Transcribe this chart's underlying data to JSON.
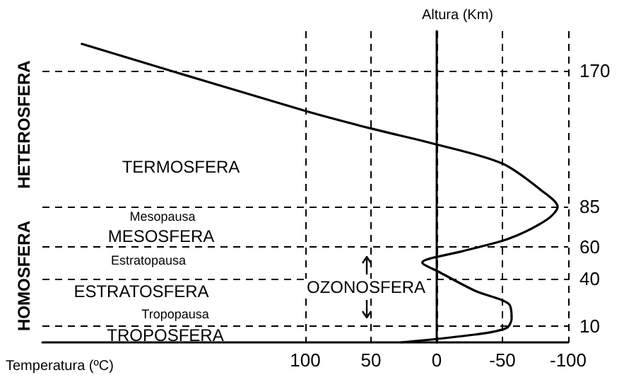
{
  "chart_data": {
    "type": "line",
    "xlabel": "Temperatura (ºC)",
    "ylabel": "Altura (Km)",
    "x": [
      27,
      -30,
      -53,
      -57,
      -55,
      -30,
      -2,
      11,
      -19,
      -55,
      -84,
      -92,
      -80,
      -50,
      0,
      50,
      100,
      270
    ],
    "series": [
      {
        "color": "#000000",
        "values": [
          0,
          5,
          9,
          15,
          24,
          32,
          44,
          50,
          57,
          65,
          77,
          85,
          95,
          112,
          124,
          134,
          145,
          187
        ]
      }
    ],
    "xlim": [
      300,
      -100
    ],
    "xticks": [
      100,
      50,
      0,
      -50,
      -100
    ],
    "ylim": [
      0,
      195
    ],
    "yticks": [
      10,
      40,
      60,
      85,
      170
    ],
    "grid": true,
    "marker": "none",
    "line_style": "solid",
    "annotations": [
      "TERMOSFERA",
      "Mesopausa",
      "MESOSFERA",
      "Estratopausa",
      "ESTRATOSFERA",
      "Tropopausa",
      "TROPOSFERA",
      "OZONOSFERA",
      "HETEROSFERA",
      "HOMOSFERA"
    ]
  }
}
